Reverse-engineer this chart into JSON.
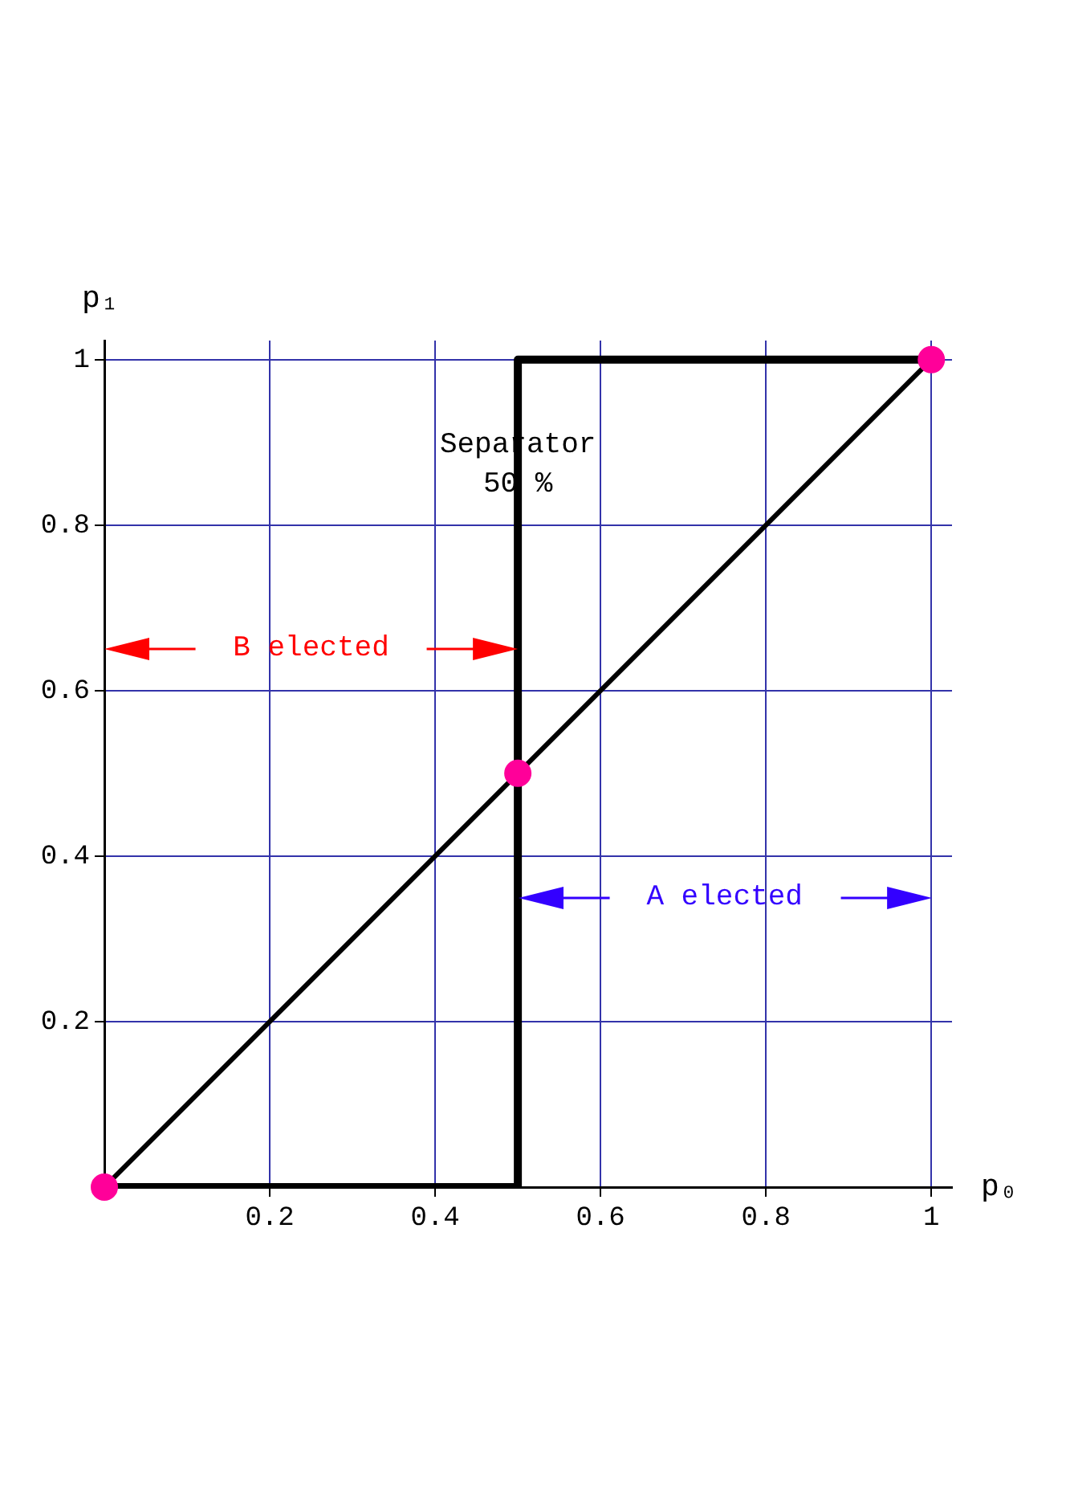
{
  "chart_data": {
    "type": "line",
    "xlabel": "p₀",
    "ylabel": "p₁",
    "xlim": [
      0,
      1.025
    ],
    "ylim": [
      0,
      1.023
    ],
    "xticks": [
      {
        "value": 0,
        "label": null
      },
      0.2,
      0.4,
      0.6,
      0.8,
      1
    ],
    "yticks": [
      {
        "value": 0,
        "label": null
      },
      0.2,
      0.4,
      0.6,
      0.8,
      1
    ],
    "grid": true,
    "legend": false,
    "series": [
      {
        "type": "line",
        "color": "#000000",
        "x": [
          0,
          0.5,
          0.5,
          1
        ],
        "values": [
          0,
          0,
          1,
          1
        ]
      },
      {
        "type": "line",
        "color": "#000000",
        "x": [
          0,
          1
        ],
        "values": [
          0,
          1
        ]
      },
      {
        "type": "scatter",
        "color": "#ff0099",
        "marker": "circle",
        "x": [
          0,
          0.5,
          1
        ],
        "values": [
          0,
          0.5,
          1
        ]
      }
    ],
    "annotations": [
      {
        "text": "Separator",
        "x": 0.5,
        "y": 0.897
      },
      {
        "text": "50 %",
        "x": 0.5,
        "y": 0.85
      },
      "B elected",
      "A elected"
    ]
  }
}
